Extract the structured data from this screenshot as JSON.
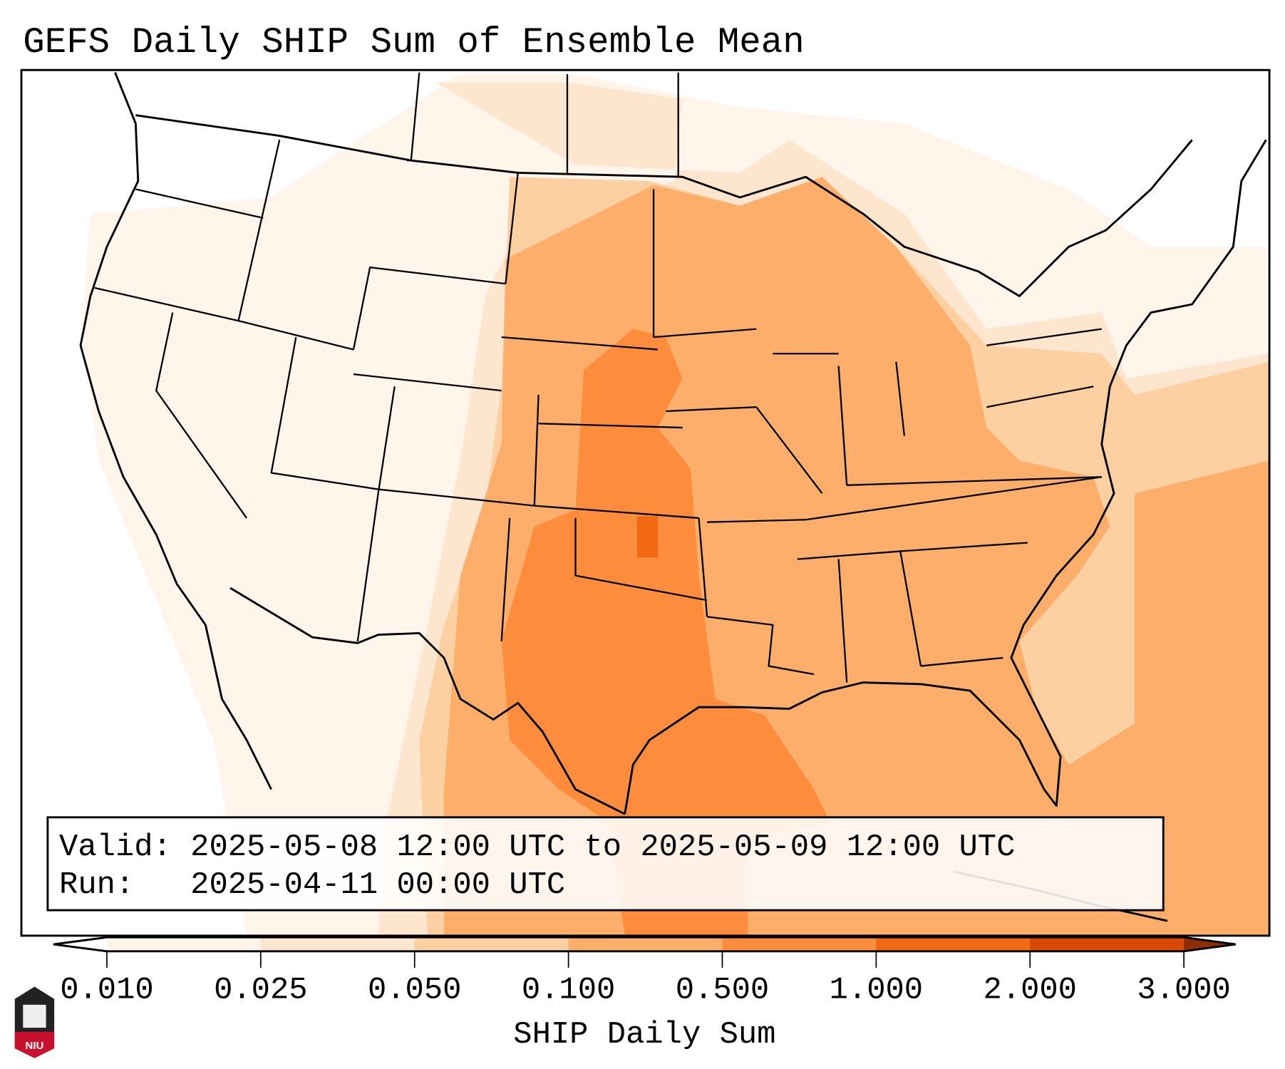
{
  "chart_data": {
    "type": "heatmap",
    "title": "GEFS Daily SHIP Sum of Ensemble Mean",
    "info": {
      "valid_line": "Valid: 2025-05-08 12:00 UTC to 2025-05-09 12:00 UTC",
      "run_line": "Run:   2025-04-11 00:00 UTC"
    },
    "colorbar": {
      "label": "SHIP Daily Sum",
      "ticks": [
        "0.010",
        "0.025",
        "0.050",
        "0.100",
        "0.500",
        "1.000",
        "2.000",
        "3.000"
      ],
      "colors": [
        "#fff5eb",
        "#fee6ce",
        "#fdd0a2",
        "#fdae6b",
        "#fd8d3c",
        "#f16913",
        "#d94801"
      ],
      "under_color": "#ffffff",
      "over_color": "#8c2d04",
      "extend": "both"
    },
    "regions": [
      {
        "name": "central-us-and-southeast",
        "level": "0.100-0.500"
      },
      {
        "name": "southern-plains-and-gulf",
        "level": "0.500-1.000"
      },
      {
        "name": "central-oklahoma",
        "level": "1.000-2.000"
      },
      {
        "name": "northern-plains-and-west",
        "level": "0.010-0.050"
      }
    ]
  },
  "logo": {
    "text": "NIU"
  }
}
